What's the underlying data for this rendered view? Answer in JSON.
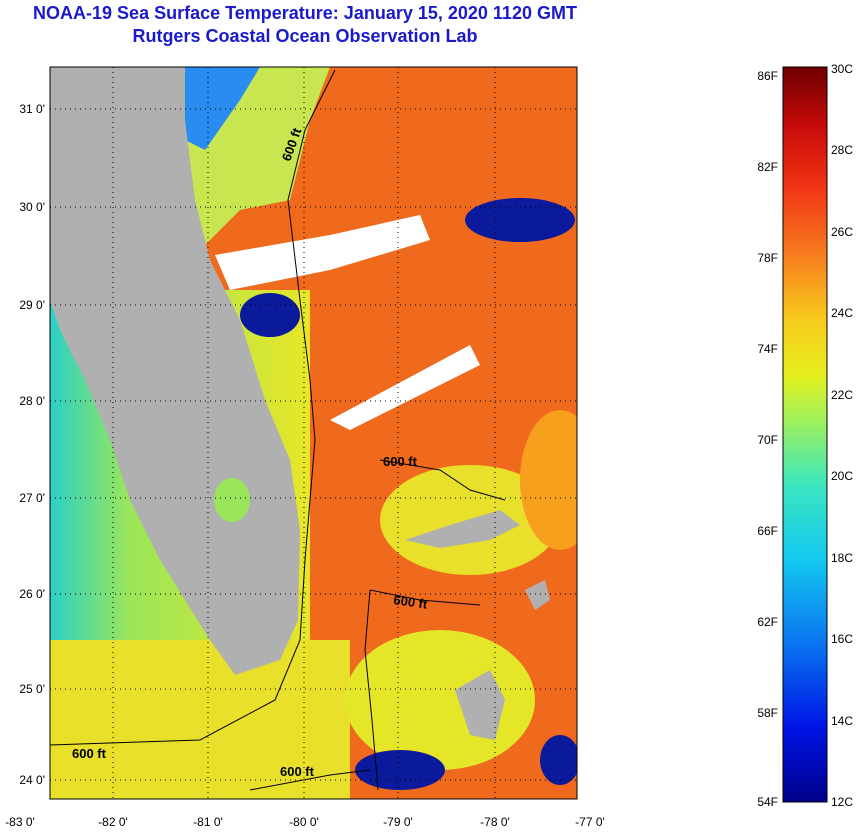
{
  "title": {
    "line1": "NOAA-19 Sea Surface Temperature:  January 15, 2020 1120 GMT",
    "line2": "Rutgers Coastal Ocean Observation Lab"
  },
  "map": {
    "lat_labels": [
      "31 0'",
      "30 0'",
      "29 0'",
      "28 0'",
      "27 0'",
      "26 0'",
      "25 0'",
      "24 0'"
    ],
    "lon_labels": [
      "-83 0'",
      "-82 0'",
      "-81 0'",
      "-80 0'",
      "-79 0'",
      "-78 0'",
      "-77 0'"
    ],
    "contour_labels": [
      "600 ft",
      "600 ft",
      "600 ft",
      "600 ft",
      "600 ft"
    ],
    "colors": {
      "land": "#b0b0b0",
      "cloud": "#ffffff",
      "warm_water": "#f06a1e",
      "mid_water": "#f7c81c",
      "cool_water": "#2ad0c8",
      "cold_water": "#0a1a9a"
    }
  },
  "colorbar": {
    "fahrenheit_labels": [
      "86F",
      "82F",
      "78F",
      "74F",
      "70F",
      "66F",
      "62F",
      "58F",
      "54F"
    ],
    "celsius_labels": [
      "30C",
      "28C",
      "26C",
      "24C",
      "22C",
      "20C",
      "18C",
      "16C",
      "14C",
      "12C"
    ]
  }
}
